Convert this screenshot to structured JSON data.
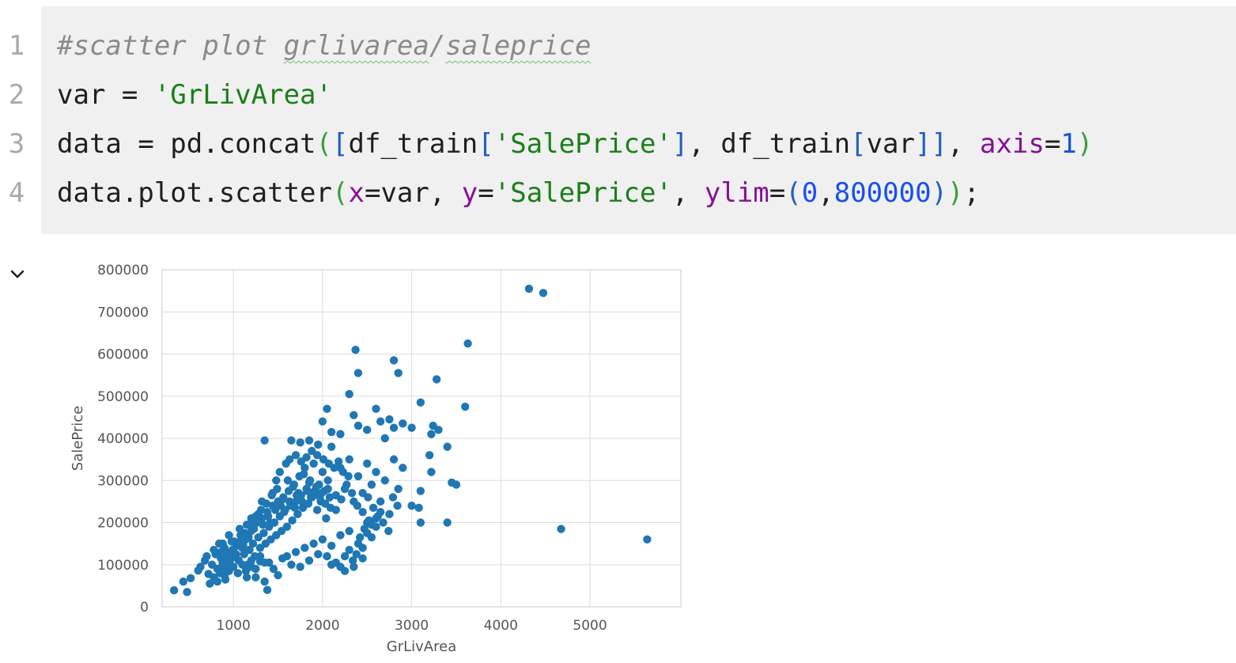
{
  "code_cell": {
    "line_numbers": [
      "1",
      "2",
      "3",
      "4"
    ],
    "lines": {
      "l1": {
        "comment_hash": "#scatter plot ",
        "comment_w1": "grlivarea",
        "comment_slash": "/",
        "comment_w2": "saleprice"
      },
      "l2": {
        "t1": "var = ",
        "s1": "'GrLivArea'"
      },
      "l3": {
        "t1": "data = pd.concat",
        "p1": "(",
        "p2": "[",
        "t2": "df_train",
        "p3": "[",
        "s1": "'SalePrice'",
        "p4": "]",
        "t3": ", df_train",
        "p5": "[",
        "t4": "var",
        "p6": "]",
        "p7": "]",
        "t5": ", ",
        "k1": "axis",
        "t6": "=",
        "n1": "1",
        "p8": ")"
      },
      "l4": {
        "t1": "data.plot.scatter",
        "p1": "(",
        "k1": "x",
        "t2": "=var, ",
        "k2": "y",
        "t3": "=",
        "s1": "'SalePrice'",
        "t4": ", ",
        "k3": "ylim",
        "t5": "=",
        "p2": "(",
        "n1": "0",
        "t6": ",",
        "n2": "800000",
        "p3": ")",
        "p4": ")",
        "t7": ";"
      }
    }
  },
  "output": {
    "toggle_icon": "chevron-down-icon"
  },
  "colors": {
    "point": "#1f77b4",
    "grid": "#dcdcdc",
    "code_bg": "#f0f0f0"
  },
  "chart_data": {
    "type": "scatter",
    "xlabel": "GrLivArea",
    "ylabel": "SalePrice",
    "xlim": [
      200,
      6020
    ],
    "ylim": [
      0,
      800000
    ],
    "x_ticks": [
      1000,
      2000,
      3000,
      4000,
      5000
    ],
    "y_ticks": [
      0,
      100000,
      200000,
      300000,
      400000,
      500000,
      600000,
      700000,
      800000
    ],
    "x_tick_labels": [
      "1000",
      "2000",
      "3000",
      "4000",
      "5000"
    ],
    "y_tick_labels": [
      "0",
      "100000",
      "200000",
      "300000",
      "400000",
      "500000",
      "600000",
      "700000",
      "800000"
    ],
    "grid": true,
    "points": [
      [
        334,
        39300
      ],
      [
        438,
        60000
      ],
      [
        480,
        35000
      ],
      [
        520,
        68000
      ],
      [
        605,
        86000
      ],
      [
        630,
        95000
      ],
      [
        680,
        110000
      ],
      [
        700,
        120000
      ],
      [
        720,
        78000
      ],
      [
        735,
        55000
      ],
      [
        760,
        100000
      ],
      [
        780,
        135000
      ],
      [
        800,
        125000
      ],
      [
        820,
        90000
      ],
      [
        840,
        150000
      ],
      [
        860,
        115000
      ],
      [
        880,
        105000
      ],
      [
        900,
        140000
      ],
      [
        910,
        65000
      ],
      [
        920,
        130000
      ],
      [
        940,
        125000
      ],
      [
        960,
        100000
      ],
      [
        980,
        155000
      ],
      [
        1000,
        130000
      ],
      [
        1020,
        118000
      ],
      [
        1040,
        145000
      ],
      [
        1060,
        110000
      ],
      [
        1080,
        170000
      ],
      [
        1100,
        140000
      ],
      [
        1120,
        125000
      ],
      [
        1140,
        160000
      ],
      [
        1160,
        100000
      ],
      [
        1180,
        135000
      ],
      [
        1200,
        180000
      ],
      [
        1220,
        150000
      ],
      [
        1240,
        120000
      ],
      [
        1260,
        200000
      ],
      [
        1280,
        165000
      ],
      [
        1300,
        140000
      ],
      [
        1320,
        210000
      ],
      [
        1340,
        175000
      ],
      [
        1360,
        150000
      ],
      [
        1380,
        225000
      ],
      [
        1400,
        190000
      ],
      [
        1420,
        160000
      ],
      [
        1440,
        240000
      ],
      [
        1460,
        200000
      ],
      [
        1480,
        170000
      ],
      [
        1500,
        250000
      ],
      [
        1520,
        215000
      ],
      [
        1540,
        180000
      ],
      [
        1560,
        260000
      ],
      [
        1580,
        230000
      ],
      [
        1600,
        190000
      ],
      [
        1620,
        275000
      ],
      [
        1640,
        240000
      ],
      [
        1660,
        205000
      ],
      [
        1680,
        290000
      ],
      [
        1700,
        250000
      ],
      [
        1720,
        220000
      ],
      [
        1740,
        310000
      ],
      [
        1760,
        265000
      ],
      [
        1780,
        235000
      ],
      [
        1800,
        330000
      ],
      [
        1820,
        280000
      ],
      [
        1840,
        245000
      ],
      [
        1860,
        300000
      ],
      [
        1880,
        260000
      ],
      [
        1900,
        340000
      ],
      [
        1920,
        270000
      ],
      [
        1940,
        230000
      ],
      [
        1960,
        290000
      ],
      [
        1980,
        250000
      ],
      [
        2000,
        320000
      ],
      [
        2020,
        275000
      ],
      [
        2040,
        210000
      ],
      [
        2060,
        300000
      ],
      [
        2080,
        260000
      ],
      [
        2100,
        380000
      ],
      [
        2150,
        230000
      ],
      [
        2200,
        330000
      ],
      [
        2250,
        280000
      ],
      [
        2300,
        350000
      ],
      [
        2350,
        250000
      ],
      [
        2400,
        310000
      ],
      [
        2450,
        270000
      ],
      [
        2500,
        340000
      ],
      [
        2550,
        290000
      ],
      [
        2600,
        320000
      ],
      [
        2650,
        250000
      ],
      [
        2700,
        300000
      ],
      [
        2750,
        220000
      ],
      [
        2800,
        350000
      ],
      [
        2850,
        280000
      ],
      [
        2900,
        330000
      ],
      [
        1140,
        85000
      ],
      [
        1200,
        95000
      ],
      [
        1250,
        70000
      ],
      [
        1300,
        108000
      ],
      [
        1350,
        60000
      ],
      [
        1380,
        40000
      ],
      [
        1400,
        105000
      ],
      [
        1450,
        90000
      ],
      [
        1500,
        75000
      ],
      [
        1550,
        115000
      ],
      [
        1600,
        120000
      ],
      [
        1650,
        100000
      ],
      [
        1700,
        130000
      ],
      [
        1750,
        95000
      ],
      [
        1800,
        140000
      ],
      [
        1850,
        110000
      ],
      [
        1900,
        150000
      ],
      [
        1950,
        125000
      ],
      [
        2000,
        160000
      ],
      [
        2100,
        145000
      ],
      [
        2150,
        105000
      ],
      [
        2200,
        170000
      ],
      [
        2250,
        120000
      ],
      [
        2300,
        180000
      ],
      [
        2350,
        95000
      ],
      [
        2400,
        150000
      ],
      [
        2450,
        115000
      ],
      [
        2500,
        200000
      ],
      [
        2550,
        165000
      ],
      [
        2600,
        190000
      ],
      [
        1350,
        395000
      ],
      [
        1650,
        395000
      ],
      [
        1750,
        390000
      ],
      [
        1850,
        395000
      ],
      [
        1950,
        385000
      ],
      [
        2000,
        440000
      ],
      [
        2050,
        470000
      ],
      [
        2100,
        415000
      ],
      [
        2200,
        410000
      ],
      [
        2300,
        505000
      ],
      [
        2350,
        455000
      ],
      [
        2400,
        430000
      ],
      [
        2500,
        420000
      ],
      [
        2600,
        470000
      ],
      [
        2650,
        440000
      ],
      [
        2700,
        400000
      ],
      [
        2750,
        445000
      ],
      [
        2800,
        425000
      ],
      [
        2900,
        435000
      ],
      [
        3000,
        425000
      ],
      [
        2370,
        610000
      ],
      [
        2400,
        555000
      ],
      [
        2800,
        585000
      ],
      [
        2850,
        555000
      ],
      [
        3280,
        540000
      ],
      [
        3100,
        485000
      ],
      [
        3220,
        410000
      ],
      [
        3240,
        430000
      ],
      [
        3300,
        420000
      ],
      [
        3200,
        360000
      ],
      [
        3400,
        380000
      ],
      [
        3220,
        320000
      ],
      [
        3100,
        275000
      ],
      [
        3000,
        240000
      ],
      [
        3080,
        235000
      ],
      [
        3100,
        200000
      ],
      [
        3400,
        200000
      ],
      [
        3450,
        295000
      ],
      [
        3500,
        290000
      ],
      [
        3600,
        475000
      ],
      [
        3630,
        625000
      ],
      [
        4316,
        755000
      ],
      [
        4476,
        745000
      ],
      [
        4676,
        184750
      ],
      [
        5642,
        160000
      ],
      [
        900,
        75000
      ],
      [
        950,
        85000
      ],
      [
        1000,
        95000
      ],
      [
        1050,
        80000
      ],
      [
        1100,
        100000
      ],
      [
        1150,
        70000
      ],
      [
        1200,
        110000
      ],
      [
        1250,
        90000
      ],
      [
        1300,
        120000
      ],
      [
        1350,
        105000
      ],
      [
        860,
        130000
      ],
      [
        880,
        150000
      ],
      [
        950,
        170000
      ],
      [
        1010,
        155000
      ],
      [
        1070,
        185000
      ],
      [
        1130,
        175000
      ],
      [
        1190,
        195000
      ],
      [
        1250,
        215000
      ],
      [
        1310,
        230000
      ],
      [
        1370,
        245000
      ],
      [
        1430,
        265000
      ],
      [
        1490,
        280000
      ],
      [
        1550,
        255000
      ],
      [
        1610,
        300000
      ],
      [
        1670,
        285000
      ],
      [
        1730,
        270000
      ],
      [
        1790,
        315000
      ],
      [
        1850,
        295000
      ],
      [
        1910,
        275000
      ],
      [
        1970,
        260000
      ],
      [
        2030,
        245000
      ],
      [
        2090,
        235000
      ],
      [
        2150,
        265000
      ],
      [
        2210,
        255000
      ],
      [
        2270,
        290000
      ],
      [
        2330,
        270000
      ],
      [
        2390,
        240000
      ],
      [
        2450,
        225000
      ],
      [
        2510,
        260000
      ],
      [
        2570,
        235000
      ],
      [
        2620,
        215000
      ],
      [
        2680,
        200000
      ],
      [
        2740,
        180000
      ],
      [
        2790,
        260000
      ],
      [
        2840,
        240000
      ],
      [
        2450,
        140000
      ],
      [
        2500,
        175000
      ],
      [
        2550,
        195000
      ],
      [
        2600,
        210000
      ],
      [
        2650,
        225000
      ],
      [
        2050,
        120000
      ],
      [
        2100,
        100000
      ],
      [
        2200,
        95000
      ],
      [
        2250,
        85000
      ],
      [
        2300,
        135000
      ],
      [
        2340,
        110000
      ],
      [
        2380,
        125000
      ],
      [
        2420,
        165000
      ],
      [
        2470,
        185000
      ],
      [
        2520,
        205000
      ],
      [
        780,
        70000
      ],
      [
        820,
        60000
      ],
      [
        850,
        80000
      ],
      [
        870,
        95000
      ],
      [
        900,
        115000
      ],
      [
        930,
        90000
      ],
      [
        960,
        110000
      ],
      [
        990,
        135000
      ],
      [
        1030,
        125000
      ],
      [
        1060,
        150000
      ],
      [
        1090,
        160000
      ],
      [
        1110,
        145000
      ],
      [
        1170,
        165000
      ],
      [
        1230,
        185000
      ],
      [
        1270,
        205000
      ],
      [
        1330,
        195000
      ],
      [
        1390,
        215000
      ],
      [
        1410,
        200000
      ],
      [
        1470,
        230000
      ],
      [
        1530,
        240000
      ],
      [
        1570,
        225000
      ],
      [
        1630,
        250000
      ],
      [
        1690,
        235000
      ],
      [
        1710,
        265000
      ],
      [
        1770,
        250000
      ],
      [
        1830,
        275000
      ],
      [
        1870,
        260000
      ],
      [
        1930,
        285000
      ],
      [
        1990,
        270000
      ],
      [
        2060,
        280000
      ],
      [
        1150,
        195000
      ],
      [
        1200,
        210000
      ],
      [
        1280,
        220000
      ],
      [
        1320,
        250000
      ],
      [
        1440,
        270000
      ],
      [
        1480,
        300000
      ],
      [
        1520,
        320000
      ],
      [
        1590,
        340000
      ],
      [
        1630,
        350000
      ],
      [
        1700,
        360000
      ],
      [
        1760,
        345000
      ],
      [
        1820,
        355000
      ],
      [
        1880,
        370000
      ],
      [
        1940,
        360000
      ],
      [
        2010,
        350000
      ],
      [
        2070,
        340000
      ],
      [
        2130,
        330000
      ],
      [
        2180,
        345000
      ],
      [
        2230,
        320000
      ],
      [
        2290,
        310000
      ]
    ]
  }
}
